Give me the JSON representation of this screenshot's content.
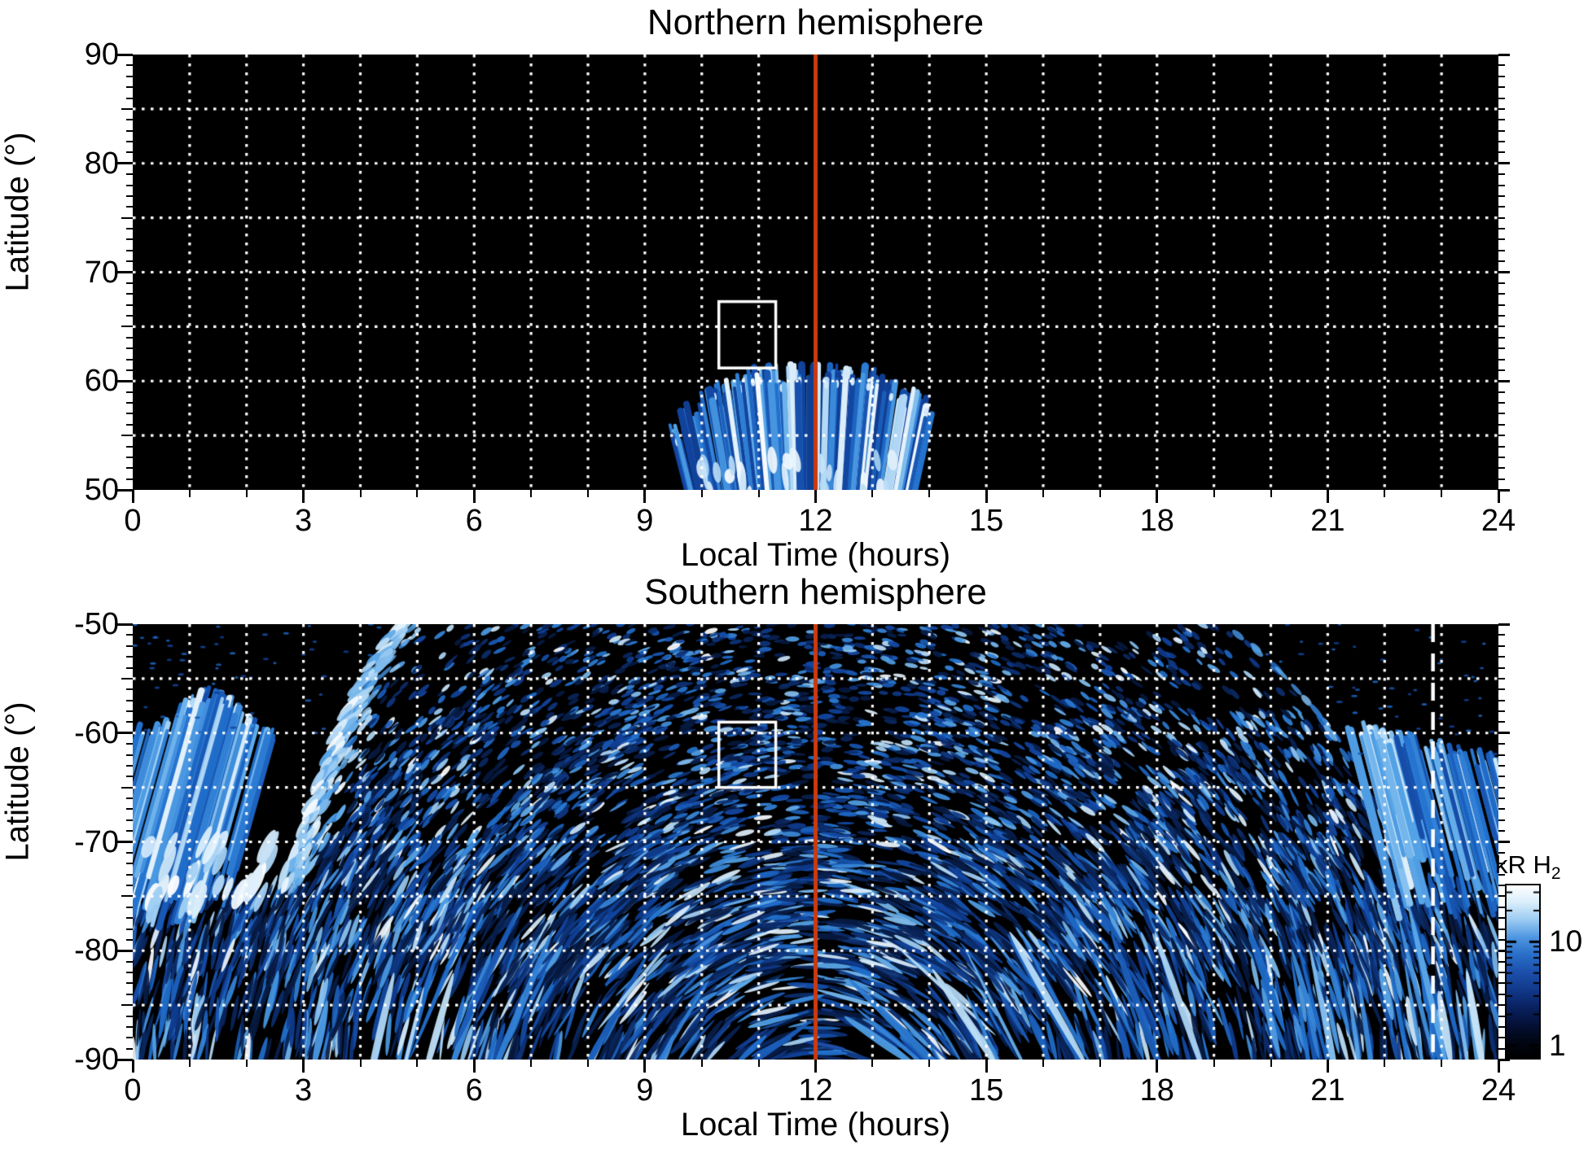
{
  "chart_data": [
    {
      "type": "heatmap",
      "id": "north",
      "title": "Northern hemisphere",
      "xlabel": "Local Time (hours)",
      "ylabel": "Latitude (°)",
      "xlim": [
        0,
        24
      ],
      "ylim": [
        50,
        90
      ],
      "xticks": [
        0,
        3,
        6,
        9,
        12,
        15,
        18,
        21,
        24
      ],
      "xtick_labels": [
        "0",
        "3",
        "6",
        "9",
        "12",
        "15",
        "18",
        "21",
        "24"
      ],
      "x_minor_step": 1,
      "yticks": [
        90,
        80,
        70,
        60,
        50
      ],
      "ytick_labels": [
        "90",
        "80",
        "70",
        "60",
        "50"
      ],
      "y_mid_step": 5,
      "y_minor_step": 1,
      "grid": {
        "x_step_hours": 1,
        "y_step_deg": 5,
        "style": "dotted",
        "color": "#ffffff"
      },
      "background": "#000000",
      "reference_lines": [
        {
          "axis": "x",
          "value": 12,
          "style": "solid",
          "color": "#cc3a0d",
          "name": "noon-line"
        }
      ],
      "annotation_box": {
        "x": [
          10.3,
          11.3
        ],
        "y": [
          61.2,
          67.3
        ],
        "color": "#ffffff"
      },
      "features": [
        {
          "name": "dayside-emission-fan",
          "kind": "fan",
          "x_range": [
            9.75,
            13.75
          ],
          "lat_top_center": 61,
          "lat_top_edge": 55.5,
          "peak_x": 11.9,
          "lat_bottom": 49.3,
          "streaks": 170,
          "description": "fan of bright blue vertical emission streaks around local noon, 1-30 kR"
        }
      ]
    },
    {
      "type": "heatmap",
      "id": "south",
      "title": "Southern hemisphere",
      "xlabel": "Local Time (hours)",
      "ylabel": "Latitude (°)",
      "xlim": [
        0,
        24
      ],
      "ylim": [
        -90,
        -50
      ],
      "xticks": [
        0,
        3,
        6,
        9,
        12,
        15,
        18,
        21,
        24
      ],
      "xtick_labels": [
        "0",
        "3",
        "6",
        "9",
        "12",
        "15",
        "18",
        "21",
        "24"
      ],
      "x_minor_step": 1,
      "yticks": [
        -50,
        -60,
        -70,
        -80,
        -90
      ],
      "ytick_labels": [
        "-50",
        "-60",
        "-70",
        "-80",
        "-90"
      ],
      "y_mid_step": 5,
      "y_minor_step": 1,
      "grid": {
        "x_step_hours": 1,
        "y_step_deg": 5,
        "style": "dotted",
        "color": "#ffffff"
      },
      "background": "#000000",
      "reference_lines": [
        {
          "axis": "x",
          "value": 12,
          "style": "solid",
          "color": "#cc3a0d",
          "name": "noon-line"
        },
        {
          "axis": "x",
          "value": 22.85,
          "style": "dashed",
          "color": "#ffffff",
          "name": "dashed-marker-line"
        }
      ],
      "annotation_box": {
        "x": [
          10.3,
          11.3
        ],
        "y": [
          -65,
          -59
        ],
        "color": "#ffffff"
      },
      "features": [
        {
          "name": "speckle-emission-field",
          "kind": "speckle",
          "attempts": 17000,
          "left_void_boundary": [
            [
              -50,
              4.6
            ],
            [
              -55,
              4.0
            ],
            [
              -60,
              3.55
            ],
            [
              -65,
              3.2
            ],
            [
              -70,
              2.9
            ],
            [
              -74,
              2.55
            ]
          ],
          "right_void_boundary": [
            [
              -50,
              19.3
            ],
            [
              -54,
              20.2
            ],
            [
              -58,
              20.9
            ],
            [
              -62,
              21.4
            ],
            [
              -66,
              21.8
            ],
            [
              -70,
              22.2
            ],
            [
              -74,
              22.6
            ]
          ],
          "full_width_below_lat": -74,
          "flow_center": {
            "x_hours": 12,
            "lat": -97
          },
          "description": "dense speckled H2 emission (~1-30 kR) covering most of the hemisphere"
        },
        {
          "name": "bright-boundary-arc",
          "kind": "arc",
          "path": [
            [
              4.6,
              -50
            ],
            [
              3.8,
              -56
            ],
            [
              3.2,
              -62
            ],
            [
              2.8,
              -68
            ],
            [
              2.55,
              -74
            ]
          ]
        },
        {
          "name": "left-emission-fan",
          "kind": "fan",
          "x_range": [
            0,
            2.55
          ],
          "lat_range": [
            -78,
            -57.5
          ],
          "streaks": 95
        },
        {
          "name": "right-emission-fan",
          "kind": "fan",
          "x_range": [
            21.35,
            24
          ],
          "lat_range": [
            -77,
            -58.5
          ],
          "streaks": 85
        },
        {
          "name": "polar-stripe-bands",
          "kind": "stripes",
          "x_range": [
            0,
            24
          ],
          "lat_range": [
            -90,
            -82
          ],
          "count": 75
        }
      ]
    }
  ],
  "colorbar": {
    "label": "kR H",
    "label_sub": "2",
    "scale": "log",
    "ticks": [
      10,
      1
    ],
    "tick_labels": [
      "10",
      "1"
    ],
    "range_approx": [
      0.76,
      35
    ],
    "gradient_top_to_bottom": [
      "#ffffff",
      "#d9edfb",
      "#9ccbf3",
      "#4f97e2",
      "#2a6fc9",
      "#1c51ad",
      "#123a8c",
      "#0a2363",
      "#05123a",
      "#010715",
      "#000000"
    ]
  },
  "colors": {
    "page_background": "#ffffff",
    "panel_background": "#000000",
    "grid": "#ffffff",
    "noon_line": "#cc3a0d",
    "dashed_line": "#ffffff",
    "annotation_box": "#ffffff",
    "text": "#000000"
  }
}
